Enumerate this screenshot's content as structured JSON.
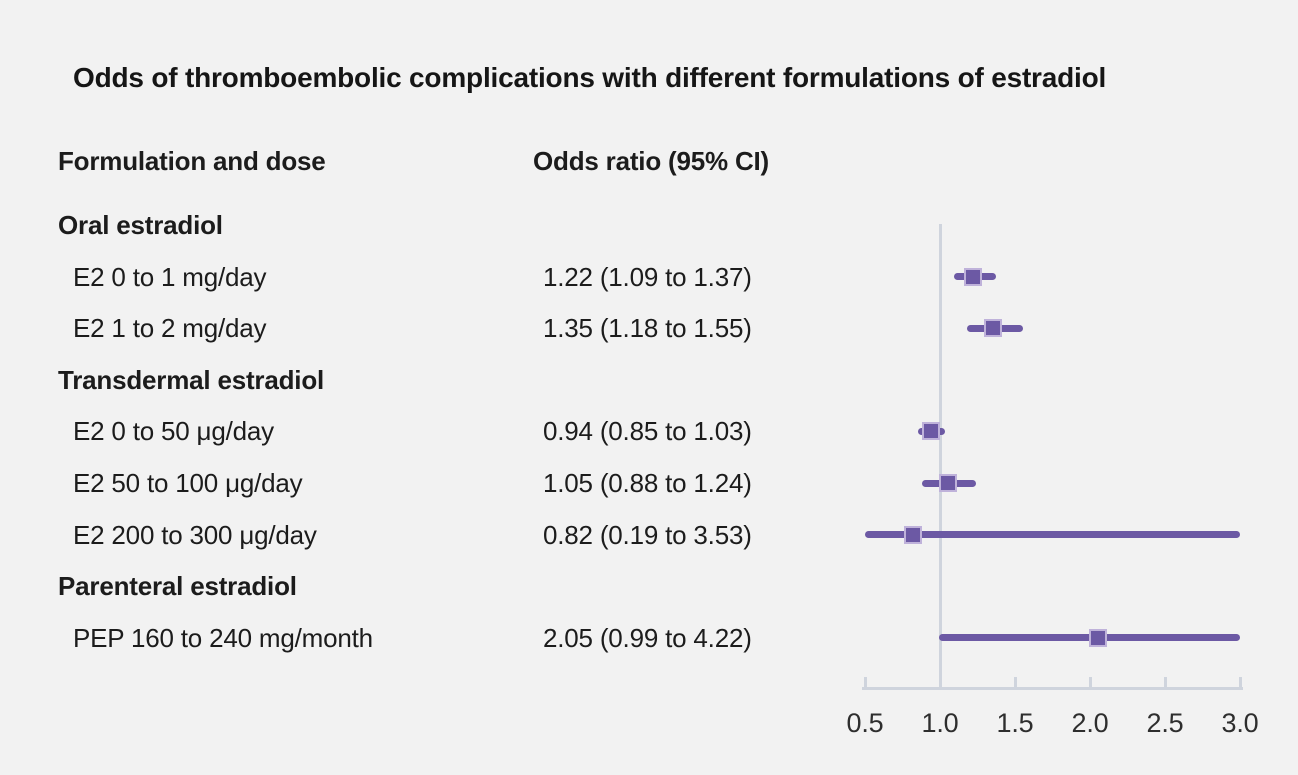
{
  "title": "Odds of thromboembolic complications with different formulations of estradiol",
  "columns": {
    "formulation": "Formulation and dose",
    "odds_ratio": "Odds ratio (95% CI)"
  },
  "colors": {
    "background": "#f2f2f2",
    "text": "#1c1c1c",
    "tick_label": "#2e2e2e"
  },
  "chart_data": {
    "type": "scatter",
    "variant": "forest-plot",
    "title": "Odds of thromboembolic complications with different formulations of estradiol",
    "xlabel": "",
    "ylabel": "",
    "xlim": [
      0.5,
      3.0
    ],
    "xticks": [
      0.5,
      1.0,
      1.5,
      2.0,
      2.5,
      3.0
    ],
    "reference_line_x": 1.0,
    "grid": false,
    "legend": false,
    "rows": [
      {
        "type": "group",
        "label": "Oral estradiol"
      },
      {
        "type": "item",
        "label": "E2 0 to 1 mg/day",
        "estimate": 1.22,
        "ci": [
          1.09,
          1.37
        ],
        "or_text": "1.22 (1.09 to 1.37)"
      },
      {
        "type": "item",
        "label": "E2 1 to 2 mg/day",
        "estimate": 1.35,
        "ci": [
          1.18,
          1.55
        ],
        "or_text": "1.35 (1.18 to 1.55)"
      },
      {
        "type": "group",
        "label": "Transdermal estradiol"
      },
      {
        "type": "item",
        "label": "E2 0 to 50 μg/day",
        "estimate": 0.94,
        "ci": [
          0.85,
          1.03
        ],
        "or_text": "0.94 (0.85 to 1.03)"
      },
      {
        "type": "item",
        "label": "E2 50 to 100 μg/day",
        "estimate": 1.05,
        "ci": [
          0.88,
          1.24
        ],
        "or_text": "1.05 (0.88 to 1.24)"
      },
      {
        "type": "item",
        "label": "E2 200 to 300 μg/day",
        "estimate": 0.82,
        "ci": [
          0.19,
          3.53
        ],
        "or_text": "0.82 (0.19 to 3.53)"
      },
      {
        "type": "group",
        "label": "Parenteral estradiol"
      },
      {
        "type": "item",
        "label": "PEP 160 to 240 mg/month",
        "estimate": 2.05,
        "ci": [
          0.99,
          4.22
        ],
        "or_text": "2.05 (0.99 to 4.22)"
      }
    ],
    "colors": {
      "marker": "#6c59a4",
      "marker_border": "#bfb2da",
      "ci_line": "#6c59a4",
      "axis": "#cfd4dd",
      "reference_line": "#cfd4dd"
    }
  }
}
